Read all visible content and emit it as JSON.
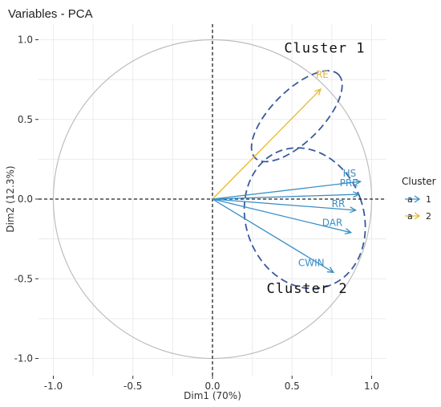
{
  "chart_data": {
    "type": "scatter",
    "subtype": "pca-variable-correlation-circle",
    "title": "Variables - PCA",
    "xlabel": "Dim1 (70%)",
    "ylabel": "Dim2 (12.3%)",
    "xlim": [
      -1.0,
      1.1
    ],
    "ylim": [
      -1.07,
      1.1
    ],
    "xticks": [
      -1.0,
      -0.5,
      0.0,
      0.5,
      1.0
    ],
    "xtick_labels": [
      "-1.0",
      "-0.5",
      "0.0",
      "0.5",
      "1.0"
    ],
    "yticks": [
      -1.0,
      -0.5,
      0.0,
      0.5,
      1.0
    ],
    "ytick_labels": [
      "-1.0",
      "-0.5",
      "0.0",
      "0.5",
      "1.0"
    ],
    "grid": true,
    "unit_circle": true,
    "variables": [
      {
        "name": "RE",
        "x": 0.68,
        "y": 0.69,
        "cluster": "2"
      },
      {
        "name": "HS",
        "x": 0.93,
        "y": 0.11,
        "cluster": "1"
      },
      {
        "name": "PRE",
        "x": 0.92,
        "y": 0.03,
        "cluster": "1"
      },
      {
        "name": "RR",
        "x": 0.9,
        "y": -0.07,
        "cluster": "1"
      },
      {
        "name": "DAR",
        "x": 0.87,
        "y": -0.21,
        "cluster": "1"
      },
      {
        "name": "CWIN",
        "x": 0.76,
        "y": -0.46,
        "cluster": "1"
      }
    ],
    "annotations": [
      {
        "text": "Cluster 1",
        "x": 0.45,
        "y": 0.92
      },
      {
        "text": "Cluster 2",
        "x": 0.34,
        "y": -0.59
      }
    ],
    "ellipses": [
      {
        "cx": 0.53,
        "cy": 0.52,
        "rx": 0.37,
        "ry": 0.16,
        "angle_deg": 45
      },
      {
        "cx": 0.58,
        "cy": -0.12,
        "rx": 0.37,
        "ry": 0.45,
        "angle_deg": 20
      }
    ],
    "legend": {
      "title": "Cluster",
      "placement": "right",
      "entries": [
        {
          "label": "1",
          "color": "#3b8fc6"
        },
        {
          "label": "2",
          "color": "#e8b92d"
        }
      ]
    },
    "colors": {
      "cluster_1": "#3b8fc6",
      "cluster_2": "#e8b92d",
      "ellipse": "#3a5a9c",
      "grid": "#ececec",
      "circle": "#bdbdbd"
    }
  }
}
